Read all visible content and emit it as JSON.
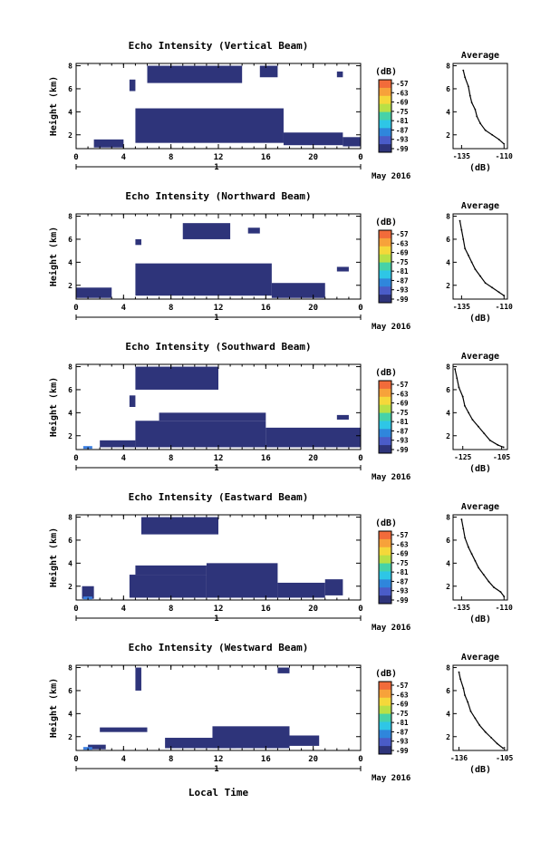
{
  "figure": {
    "date_label": "May 2016",
    "x_axis_title": "Local Time",
    "day_marker": "1",
    "colorbar_unit": "(dB)",
    "colorbar_ticks": [
      "-57",
      "-63",
      "-69",
      "-75",
      "-81",
      "-87",
      "-93",
      "-99"
    ],
    "colorbar_colors": [
      "#f26b3a",
      "#f7a23a",
      "#f5d83a",
      "#b8e046",
      "#46d2a8",
      "#2ec6e6",
      "#2f86dc",
      "#4a5cc8",
      "#2e347a"
    ],
    "echo_color": "#2e347a",
    "x_ticks": [
      "0",
      "4",
      "8",
      "12",
      "16",
      "20",
      "0"
    ],
    "y_ticks": [
      "2",
      "4",
      "6",
      "8"
    ],
    "y_label": "Height (km)"
  },
  "chart_data": [
    {
      "type": "heatmap",
      "title": "Echo Intensity (Vertical Beam)",
      "xlabel": "",
      "ylabel": "Height (km)",
      "xlim": [
        0,
        24
      ],
      "ylim": [
        0.8,
        8.2
      ],
      "echo_blocks": [
        [
          1.5,
          4.0,
          0.9,
          1.6
        ],
        [
          5.0,
          17.5,
          1.3,
          4.3
        ],
        [
          17.5,
          22.5,
          1.1,
          2.2
        ],
        [
          22.5,
          24,
          1.0,
          1.8
        ],
        [
          6.0,
          14.0,
          6.5,
          8.0
        ],
        [
          4.5,
          5.0,
          5.8,
          6.8
        ],
        [
          15.5,
          17.0,
          7.0,
          8.0
        ],
        [
          22.0,
          22.5,
          7.0,
          7.5
        ]
      ],
      "avg_profile": {
        "title": "Average",
        "xlabel": "(dB)",
        "xticks": [
          "-135",
          "-110"
        ],
        "xlim": [
          -140,
          -108
        ],
        "ylim": [
          0.8,
          8.2
        ],
        "yticks": [
          "2",
          "4",
          "6",
          "8"
        ],
        "points": [
          [
            -134,
            7.6
          ],
          [
            -133,
            7.0
          ],
          [
            -131,
            6.2
          ],
          [
            -130,
            5.4
          ],
          [
            -129,
            4.8
          ],
          [
            -127,
            4.2
          ],
          [
            -126,
            3.6
          ],
          [
            -124,
            3.0
          ],
          [
            -121,
            2.4
          ],
          [
            -117,
            2.0
          ],
          [
            -113,
            1.6
          ],
          [
            -110,
            1.2
          ]
        ]
      }
    },
    {
      "type": "heatmap",
      "title": "Echo Intensity (Northward Beam)",
      "xlabel": "",
      "ylabel": "Height (km)",
      "xlim": [
        0,
        24
      ],
      "ylim": [
        0.8,
        8.2
      ],
      "echo_blocks": [
        [
          0,
          3.0,
          0.9,
          1.8
        ],
        [
          5.0,
          16.5,
          1.1,
          3.9
        ],
        [
          16.5,
          21.0,
          0.9,
          2.2
        ],
        [
          9.0,
          13.0,
          6.0,
          7.4
        ],
        [
          14.5,
          15.5,
          6.5,
          7.0
        ],
        [
          5.0,
          5.5,
          5.5,
          6.0
        ],
        [
          22.0,
          23.0,
          3.2,
          3.6
        ]
      ],
      "avg_profile": {
        "title": "Average",
        "xlabel": "(dB)",
        "xticks": [
          "-135",
          "-110"
        ],
        "xlim": [
          -140,
          -108
        ],
        "ylim": [
          0.8,
          8.2
        ],
        "yticks": [
          "2",
          "4",
          "6",
          "8"
        ],
        "points": [
          [
            -136,
            7.6
          ],
          [
            -135,
            6.8
          ],
          [
            -134,
            6.0
          ],
          [
            -133,
            5.2
          ],
          [
            -131,
            4.6
          ],
          [
            -129,
            4.0
          ],
          [
            -127,
            3.4
          ],
          [
            -124,
            2.8
          ],
          [
            -121,
            2.2
          ],
          [
            -117,
            1.8
          ],
          [
            -113,
            1.4
          ],
          [
            -110,
            1.1
          ]
        ]
      }
    },
    {
      "type": "heatmap",
      "title": "Echo Intensity (Southward Beam)",
      "xlabel": "",
      "ylabel": "Height (km)",
      "xlim": [
        0,
        24
      ],
      "ylim": [
        0.8,
        8.2
      ],
      "echo_blocks": [
        [
          2.0,
          5.0,
          1.0,
          1.6
        ],
        [
          5.0,
          16.0,
          1.0,
          3.3
        ],
        [
          7.0,
          16.0,
          3.3,
          4.0
        ],
        [
          16.0,
          24,
          1.0,
          2.7
        ],
        [
          5.0,
          12.0,
          6.0,
          8.0
        ],
        [
          4.5,
          5.0,
          4.5,
          5.5
        ],
        [
          22.0,
          23.0,
          3.4,
          3.8
        ]
      ],
      "avg_profile": {
        "title": "Average",
        "xlabel": "(dB)",
        "xticks": [
          "-125",
          "-105"
        ],
        "xlim": [
          -130,
          -102
        ],
        "ylim": [
          0.8,
          8.2
        ],
        "yticks": [
          "2",
          "4",
          "6",
          "8"
        ],
        "points": [
          [
            -129,
            7.8
          ],
          [
            -128,
            7.0
          ],
          [
            -127,
            6.2
          ],
          [
            -125,
            5.4
          ],
          [
            -124,
            4.6
          ],
          [
            -122,
            4.0
          ],
          [
            -120,
            3.4
          ],
          [
            -117,
            2.8
          ],
          [
            -114,
            2.2
          ],
          [
            -111,
            1.6
          ],
          [
            -107,
            1.2
          ],
          [
            -104,
            1.0
          ]
        ]
      }
    },
    {
      "type": "heatmap",
      "title": "Echo Intensity (Eastward Beam)",
      "xlabel": "",
      "ylabel": "Height (km)",
      "xlim": [
        0,
        24
      ],
      "ylim": [
        0.8,
        8.2
      ],
      "echo_blocks": [
        [
          0.5,
          1.5,
          0.9,
          2.0
        ],
        [
          4.5,
          11.0,
          1.0,
          3.0
        ],
        [
          5.0,
          11.0,
          3.0,
          3.8
        ],
        [
          11.0,
          17.0,
          1.0,
          4.0
        ],
        [
          17.0,
          21.0,
          1.0,
          2.3
        ],
        [
          5.5,
          12.0,
          6.5,
          8.0
        ],
        [
          21.0,
          22.5,
          1.2,
          2.6
        ]
      ],
      "avg_profile": {
        "title": "Average",
        "xlabel": "(dB)",
        "xticks": [
          "-135",
          "-110"
        ],
        "xlim": [
          -140,
          -108
        ],
        "ylim": [
          0.8,
          8.2
        ],
        "yticks": [
          "2",
          "4",
          "6",
          "8"
        ],
        "points": [
          [
            -135,
            7.8
          ],
          [
            -134,
            7.0
          ],
          [
            -133,
            6.2
          ],
          [
            -131,
            5.4
          ],
          [
            -129,
            4.8
          ],
          [
            -127,
            4.2
          ],
          [
            -125,
            3.6
          ],
          [
            -122,
            3.0
          ],
          [
            -119,
            2.4
          ],
          [
            -116,
            1.9
          ],
          [
            -112,
            1.5
          ],
          [
            -110,
            1.1
          ]
        ]
      }
    },
    {
      "type": "heatmap",
      "title": "Echo Intensity (Westward Beam)",
      "xlabel": "",
      "ylabel": "Height (km)",
      "xlim": [
        0,
        24
      ],
      "ylim": [
        0.8,
        8.2
      ],
      "echo_blocks": [
        [
          1.0,
          2.5,
          0.9,
          1.3
        ],
        [
          7.5,
          13.5,
          1.0,
          1.9
        ],
        [
          11.5,
          18.0,
          1.0,
          2.9
        ],
        [
          18.0,
          20.5,
          1.2,
          2.1
        ],
        [
          5.0,
          5.5,
          6.0,
          8.0
        ],
        [
          2.0,
          6.0,
          2.4,
          2.8
        ],
        [
          17.0,
          18.0,
          7.5,
          8.0
        ]
      ],
      "avg_profile": {
        "title": "Average",
        "xlabel": "(dB)",
        "xticks": [
          "-136",
          "-105"
        ],
        "xlim": [
          -140,
          -103
        ],
        "ylim": [
          0.8,
          8.2
        ],
        "yticks": [
          "2",
          "4",
          "6",
          "8"
        ],
        "points": [
          [
            -136,
            7.6
          ],
          [
            -135,
            7.0
          ],
          [
            -133,
            6.2
          ],
          [
            -132,
            5.6
          ],
          [
            -130,
            5.0
          ],
          [
            -128,
            4.2
          ],
          [
            -125,
            3.6
          ],
          [
            -122,
            3.0
          ],
          [
            -118,
            2.4
          ],
          [
            -114,
            1.9
          ],
          [
            -110,
            1.4
          ],
          [
            -106,
            1.0
          ]
        ]
      }
    }
  ]
}
